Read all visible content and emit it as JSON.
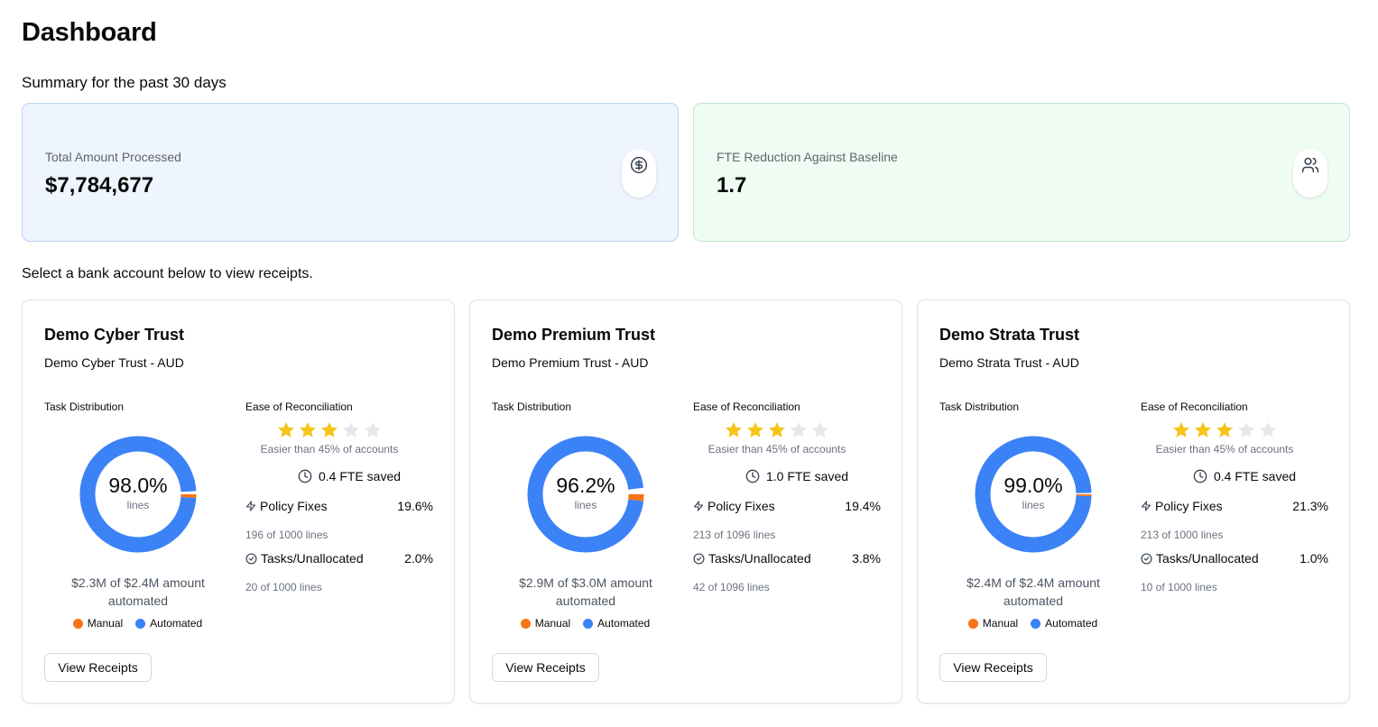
{
  "page": {
    "title": "Dashboard",
    "summary_caption": "Summary for the past 30 days",
    "select_caption": "Select a bank account below to view receipts."
  },
  "stats": {
    "total": {
      "label": "Total Amount Processed",
      "value": "$7,784,677",
      "icon": "dollar-circle-icon"
    },
    "fte": {
      "label": "FTE Reduction Against Baseline",
      "value": "1.7",
      "icon": "users-icon"
    }
  },
  "colors": {
    "manual": "#f97316",
    "automated": "#3b82f6",
    "star_filled": "#f5c518",
    "star_empty": "#e5e7eb"
  },
  "accounts": [
    {
      "name": "Demo Cyber Trust",
      "subtitle": "Demo Cyber Trust - AUD",
      "task_distribution_label": "Task Distribution",
      "automated_pct": 98.0,
      "automated_pct_label": "98.0%",
      "unit_label": "lines",
      "amount_text": "$2.3M of $2.4M amount automated",
      "legend_manual": "Manual",
      "legend_automated": "Automated",
      "ease_label": "Ease of Reconciliation",
      "stars": 3,
      "max_stars": 5,
      "easier_text": "Easier than 45% of accounts",
      "fte_saved": "0.4 FTE saved",
      "policy_fixes_label": "Policy Fixes",
      "policy_fixes_pct": "19.6%",
      "policy_fixes_lines": "196 of 1000 lines",
      "tasks_label": "Tasks/Unallocated",
      "tasks_pct": "2.0%",
      "tasks_lines": "20 of 1000 lines",
      "button_label": "View Receipts"
    },
    {
      "name": "Demo Premium Trust",
      "subtitle": "Demo Premium Trust - AUD",
      "task_distribution_label": "Task Distribution",
      "automated_pct": 96.2,
      "automated_pct_label": "96.2%",
      "unit_label": "lines",
      "amount_text": "$2.9M of $3.0M amount automated",
      "legend_manual": "Manual",
      "legend_automated": "Automated",
      "ease_label": "Ease of Reconciliation",
      "stars": 3,
      "max_stars": 5,
      "easier_text": "Easier than 45% of accounts",
      "fte_saved": "1.0 FTE saved",
      "policy_fixes_label": "Policy Fixes",
      "policy_fixes_pct": "19.4%",
      "policy_fixes_lines": "213 of 1096 lines",
      "tasks_label": "Tasks/Unallocated",
      "tasks_pct": "3.8%",
      "tasks_lines": "42 of 1096 lines",
      "button_label": "View Receipts"
    },
    {
      "name": "Demo Strata Trust",
      "subtitle": "Demo Strata Trust - AUD",
      "task_distribution_label": "Task Distribution",
      "automated_pct": 99.0,
      "automated_pct_label": "99.0%",
      "unit_label": "lines",
      "amount_text": "$2.4M of $2.4M amount automated",
      "legend_manual": "Manual",
      "legend_automated": "Automated",
      "ease_label": "Ease of Reconciliation",
      "stars": 3,
      "max_stars": 5,
      "easier_text": "Easier than 45% of accounts",
      "fte_saved": "0.4 FTE saved",
      "policy_fixes_label": "Policy Fixes",
      "policy_fixes_pct": "21.3%",
      "policy_fixes_lines": "213 of 1000 lines",
      "tasks_label": "Tasks/Unallocated",
      "tasks_pct": "1.0%",
      "tasks_lines": "10 of 1000 lines",
      "button_label": "View Receipts"
    }
  ]
}
